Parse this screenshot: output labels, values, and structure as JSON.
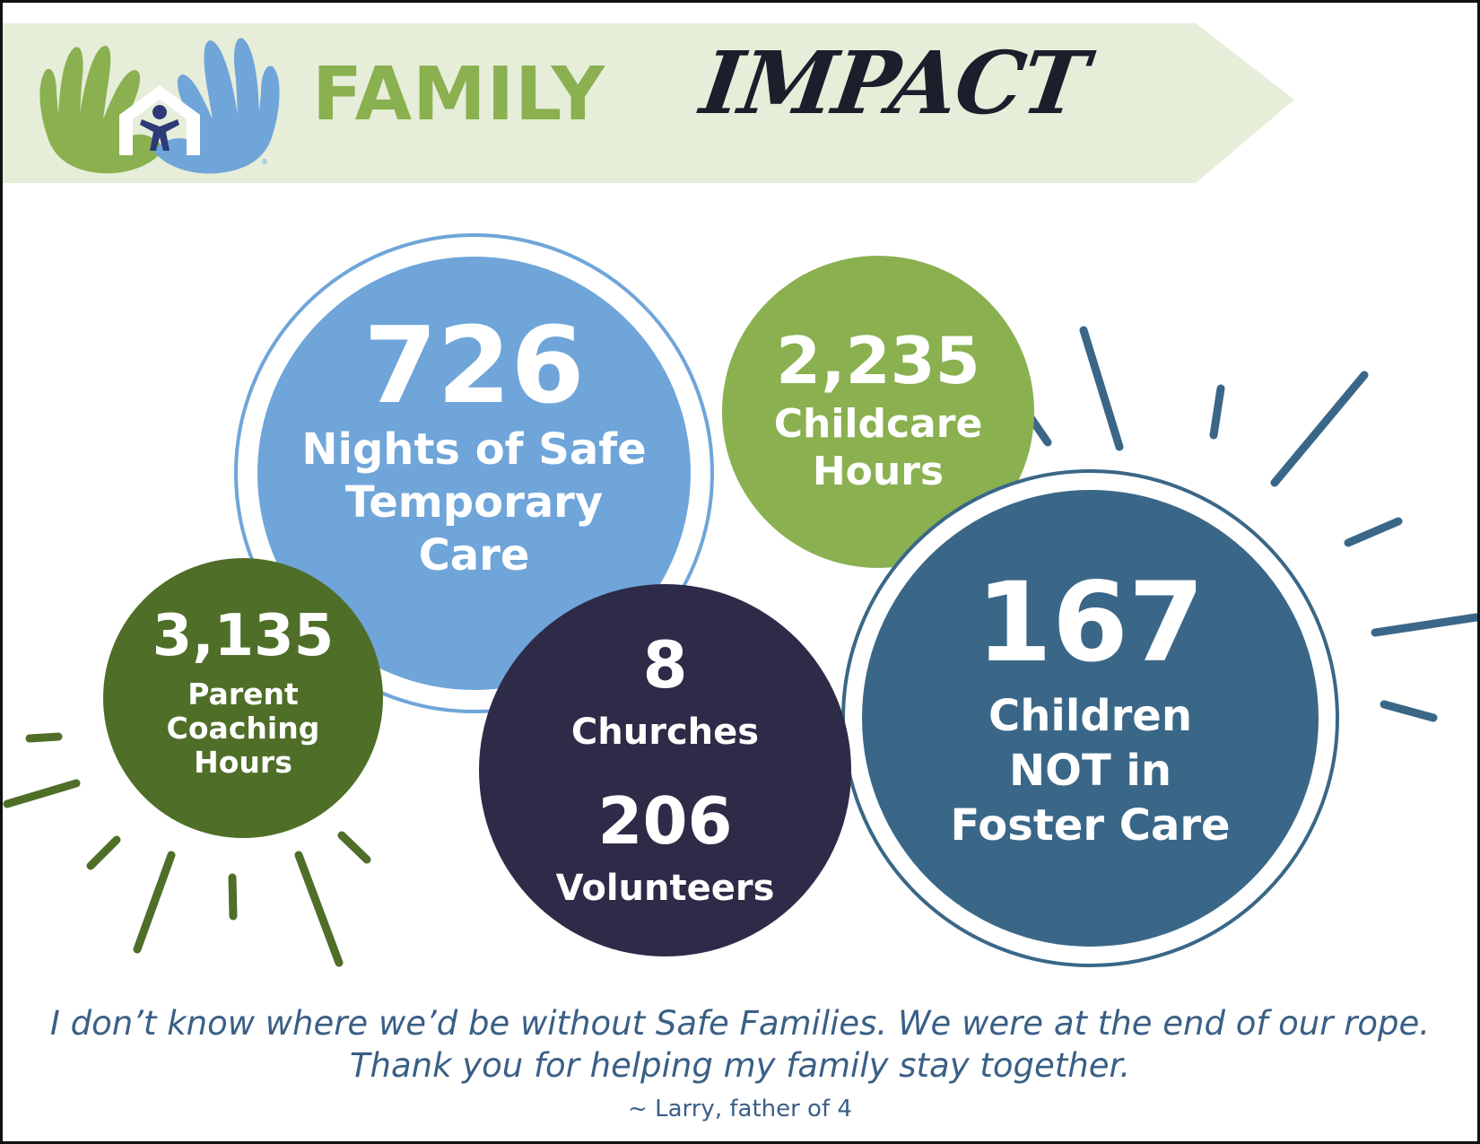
{
  "header": {
    "title_main": "FAMILY",
    "title_script": "IMPACT",
    "logo_icon": "hands-house-child-icon",
    "colors": {
      "banner_bg": "#e6edd9",
      "green": "#8ab050",
      "blue": "#6fa5d9",
      "dark": "#1a1f2b"
    }
  },
  "stats": {
    "nights": {
      "value": "726",
      "label_line1": "Nights of Safe",
      "label_line2": "Temporary",
      "label_line3": "Care",
      "color": "#6fa5d9"
    },
    "childcare": {
      "value": "2,235",
      "label_line1": "Childcare",
      "label_line2": "Hours",
      "color": "#8ab050"
    },
    "coaching": {
      "value": "3,135",
      "label_line1": "Parent",
      "label_line2": "Coaching",
      "label_line3": "Hours",
      "color": "#4f6e28"
    },
    "churches": {
      "value": "8",
      "label": "Churches",
      "color": "#2d2b48"
    },
    "volunteers": {
      "value": "206",
      "label": "Volunteers"
    },
    "children": {
      "value": "167",
      "label_line1": "Children",
      "label_line2": "NOT in",
      "label_line3": "Foster Care",
      "color": "#3a6788"
    }
  },
  "testimonial": {
    "line1": "I don’t know where we’d be without Safe Families. We were at the end of our rope.",
    "line2": "Thank you for helping my family stay together.",
    "attribution": "~ Larry, father of 4"
  }
}
